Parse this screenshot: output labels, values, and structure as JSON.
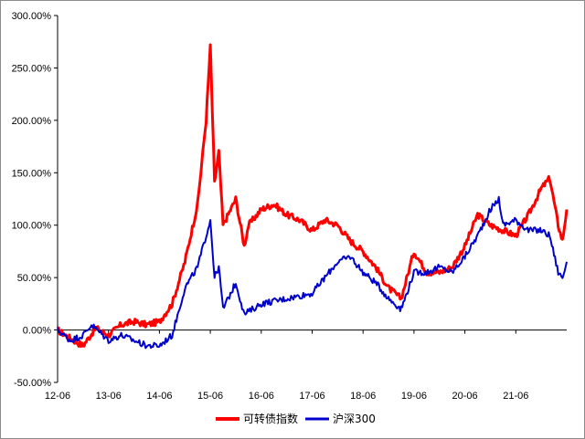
{
  "chart_data": {
    "type": "line",
    "title": "",
    "xlabel": "",
    "ylabel": "",
    "x_ticks": [
      "12-06",
      "13-06",
      "14-06",
      "15-06",
      "16-06",
      "17-06",
      "18-06",
      "19-06",
      "20-06",
      "21-06"
    ],
    "xlim": [
      "2012-06",
      "2022-06"
    ],
    "y_ticks": [
      "300.00%",
      "250.00%",
      "200.00%",
      "150.00%",
      "100.00%",
      "50.00%",
      "0.00%",
      "-50.00%"
    ],
    "ylim": [
      -50,
      300
    ],
    "grid": false,
    "legend_position": "bottom-center",
    "series": [
      {
        "name": "可转债指数",
        "color": "#ff0000",
        "points": [
          [
            "2012-06",
            0
          ],
          [
            "2012-09",
            -8
          ],
          [
            "2012-12",
            -15
          ],
          [
            "2013-03",
            2
          ],
          [
            "2013-06",
            -5
          ],
          [
            "2013-09",
            5
          ],
          [
            "2013-12",
            8
          ],
          [
            "2014-03",
            5
          ],
          [
            "2014-06",
            8
          ],
          [
            "2014-09",
            25
          ],
          [
            "2014-12",
            65
          ],
          [
            "2015-03",
            120
          ],
          [
            "2015-05",
            200
          ],
          [
            "2015-06",
            270
          ],
          [
            "2015-07",
            140
          ],
          [
            "2015-08",
            170
          ],
          [
            "2015-09",
            100
          ],
          [
            "2015-12",
            125
          ],
          [
            "2016-02",
            80
          ],
          [
            "2016-03",
            100
          ],
          [
            "2016-06",
            115
          ],
          [
            "2016-09",
            120
          ],
          [
            "2016-12",
            110
          ],
          [
            "2017-03",
            105
          ],
          [
            "2017-06",
            95
          ],
          [
            "2017-09",
            105
          ],
          [
            "2017-12",
            100
          ],
          [
            "2018-03",
            85
          ],
          [
            "2018-06",
            75
          ],
          [
            "2018-09",
            60
          ],
          [
            "2018-12",
            40
          ],
          [
            "2019-03",
            30
          ],
          [
            "2019-06",
            75
          ],
          [
            "2019-09",
            55
          ],
          [
            "2019-12",
            55
          ],
          [
            "2020-03",
            60
          ],
          [
            "2020-06",
            80
          ],
          [
            "2020-09",
            110
          ],
          [
            "2020-12",
            100
          ],
          [
            "2021-03",
            95
          ],
          [
            "2021-06",
            90
          ],
          [
            "2021-09",
            110
          ],
          [
            "2021-12",
            135
          ],
          [
            "2022-02",
            145
          ],
          [
            "2022-04",
            100
          ],
          [
            "2022-05",
            85
          ],
          [
            "2022-06",
            115
          ]
        ]
      },
      {
        "name": "沪深300",
        "color": "#0000cc",
        "points": [
          [
            "2012-06",
            0
          ],
          [
            "2012-09",
            -10
          ],
          [
            "2012-12",
            -5
          ],
          [
            "2013-02",
            5
          ],
          [
            "2013-06",
            -10
          ],
          [
            "2013-09",
            -5
          ],
          [
            "2013-12",
            -10
          ],
          [
            "2014-03",
            -15
          ],
          [
            "2014-06",
            -15
          ],
          [
            "2014-09",
            -5
          ],
          [
            "2014-12",
            40
          ],
          [
            "2015-03",
            60
          ],
          [
            "2015-05",
            90
          ],
          [
            "2015-06",
            105
          ],
          [
            "2015-07",
            50
          ],
          [
            "2015-08",
            60
          ],
          [
            "2015-09",
            20
          ],
          [
            "2015-12",
            45
          ],
          [
            "2016-02",
            15
          ],
          [
            "2016-06",
            25
          ],
          [
            "2016-12",
            30
          ],
          [
            "2017-06",
            35
          ],
          [
            "2017-09",
            50
          ],
          [
            "2017-12",
            65
          ],
          [
            "2018-03",
            70
          ],
          [
            "2018-06",
            55
          ],
          [
            "2018-09",
            45
          ],
          [
            "2018-12",
            30
          ],
          [
            "2019-03",
            20
          ],
          [
            "2019-06",
            55
          ],
          [
            "2019-09",
            55
          ],
          [
            "2019-12",
            60
          ],
          [
            "2020-03",
            55
          ],
          [
            "2020-06",
            70
          ],
          [
            "2020-09",
            90
          ],
          [
            "2020-12",
            115
          ],
          [
            "2021-02",
            125
          ],
          [
            "2021-03",
            100
          ],
          [
            "2021-06",
            105
          ],
          [
            "2021-09",
            95
          ],
          [
            "2021-12",
            95
          ],
          [
            "2022-02",
            90
          ],
          [
            "2022-04",
            55
          ],
          [
            "2022-05",
            50
          ],
          [
            "2022-06",
            65
          ]
        ]
      }
    ]
  }
}
